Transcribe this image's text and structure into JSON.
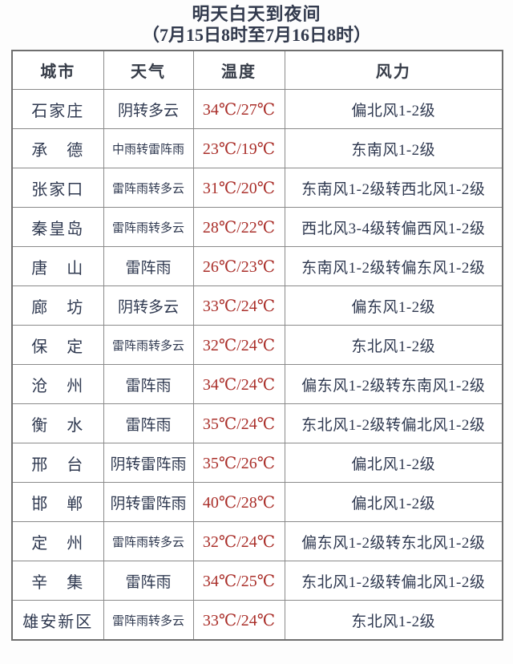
{
  "page": {
    "title_line1": "明天白天到夜间",
    "title_line2": "（7月15日8时至7月16日8时）"
  },
  "colors": {
    "text_dark": "#2f3950",
    "temp_red": "#aa2f2a",
    "border_inner": "#8a8a8a",
    "border_outer": "#6f6f6f",
    "background": "#ffffff"
  },
  "table": {
    "headers": [
      "城市",
      "天气",
      "温度",
      "风力"
    ],
    "columns": [
      "city",
      "weather",
      "temp",
      "wind"
    ],
    "rows": [
      {
        "city": "石家庄",
        "weather": "阴转多云",
        "temp": "34℃/27℃",
        "wind": "偏北风1-2级"
      },
      {
        "city": "承　德",
        "weather": "中雨转雷阵雨",
        "temp": "23℃/19℃",
        "wind": "东南风1-2级"
      },
      {
        "city": "张家口",
        "weather": "雷阵雨转多云",
        "temp": "31℃/20℃",
        "wind": "东南风1-2级转西北风1-2级"
      },
      {
        "city": "秦皇岛",
        "weather": "雷阵雨转多云",
        "temp": "28℃/22℃",
        "wind": "西北风3-4级转偏西风1-2级"
      },
      {
        "city": "唐　山",
        "weather": "雷阵雨",
        "temp": "26℃/23℃",
        "wind": "东南风1-2级转偏东风1-2级"
      },
      {
        "city": "廊　坊",
        "weather": "阴转多云",
        "temp": "33℃/24℃",
        "wind": "偏东风1-2级"
      },
      {
        "city": "保　定",
        "weather": "雷阵雨转多云",
        "temp": "32℃/24℃",
        "wind": "东北风1-2级"
      },
      {
        "city": "沧　州",
        "weather": "雷阵雨",
        "temp": "34℃/24℃",
        "wind": "偏东风1-2级转东南风1-2级"
      },
      {
        "city": "衡　水",
        "weather": "雷阵雨",
        "temp": "35℃/24℃",
        "wind": "东北风1-2级转偏北风1-2级"
      },
      {
        "city": "邢　台",
        "weather": "阴转雷阵雨",
        "temp": "35℃/26℃",
        "wind": "偏北风1-2级"
      },
      {
        "city": "邯　郸",
        "weather": "阴转雷阵雨",
        "temp": "40℃/28℃",
        "wind": "偏北风1-2级"
      },
      {
        "city": "定　州",
        "weather": "雷阵雨转多云",
        "temp": "32℃/24℃",
        "wind": "偏东风1-2级转东北风1-2级"
      },
      {
        "city": "辛　集",
        "weather": "雷阵雨",
        "temp": "34℃/25℃",
        "wind": "东北风1-2级转偏北风1-2级"
      },
      {
        "city": "雄安新区",
        "weather": "雷阵雨转多云",
        "temp": "33℃/24℃",
        "wind": "东北风1-2级"
      }
    ]
  }
}
